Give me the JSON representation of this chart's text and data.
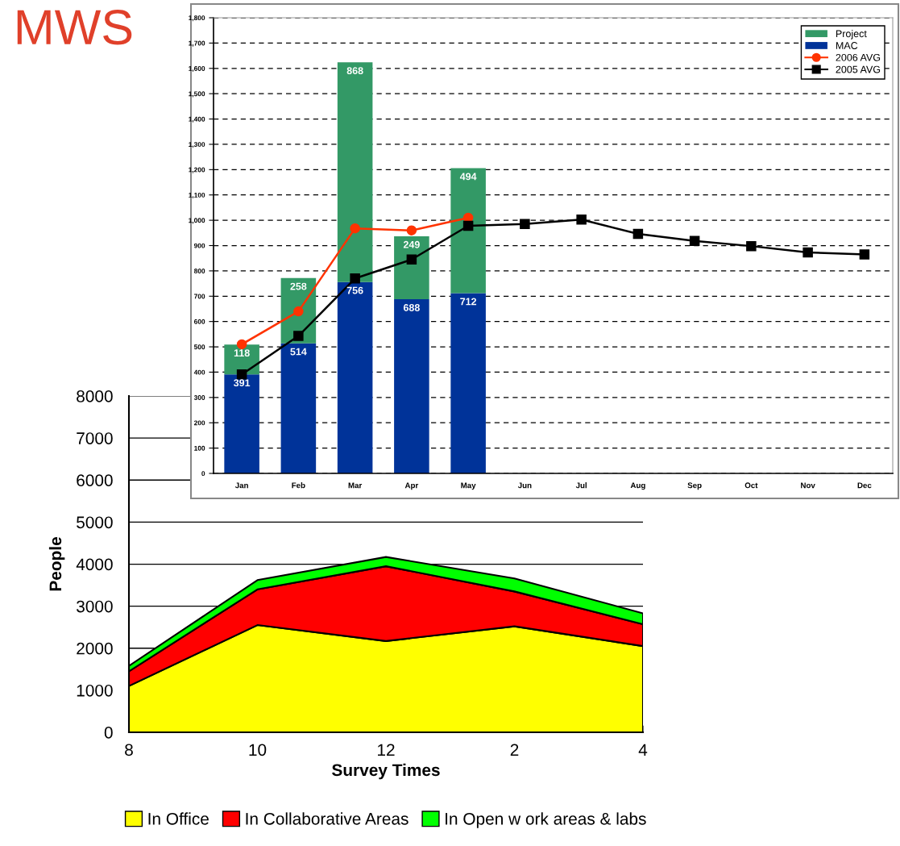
{
  "chart_data": [
    {
      "type": "area",
      "stacked": true,
      "xlabel": "Survey Times",
      "ylabel": "People",
      "categories": [
        "8",
        "10",
        "12",
        "2",
        "4"
      ],
      "ylim": [
        0,
        8000
      ],
      "yticks": [
        0,
        1000,
        2000,
        3000,
        4000,
        5000,
        6000,
        7000,
        8000
      ],
      "grid": "y",
      "legend": "bottom",
      "series": [
        {
          "name": "In Office",
          "color": "#ffff00",
          "values": [
            1100,
            2550,
            2170,
            2520,
            2050
          ]
        },
        {
          "name": "In Collaborative Areas",
          "color": "#ff0000",
          "values": [
            350,
            850,
            1780,
            830,
            520
          ]
        },
        {
          "name": "In Open w ork areas & labs",
          "color": "#00ff00",
          "values": [
            130,
            220,
            220,
            310,
            260
          ]
        }
      ]
    },
    {
      "type": "bar",
      "stacked": true,
      "title": "MWS",
      "categories": [
        "Jan",
        "Feb",
        "Mar",
        "Apr",
        "May",
        "Jun",
        "Jul",
        "Aug",
        "Sep",
        "Oct",
        "Nov",
        "Dec"
      ],
      "ylim": [
        0,
        1800
      ],
      "yticks": [
        {
          "value": 0,
          "label": "0"
        },
        {
          "value": 100,
          "label": "100"
        },
        {
          "value": 200,
          "label": "200"
        },
        {
          "value": 300,
          "label": "300"
        },
        {
          "value": 400,
          "label": "400"
        },
        {
          "value": 500,
          "label": "500"
        },
        {
          "value": 600,
          "label": "600"
        },
        {
          "value": 700,
          "label": "700"
        },
        {
          "value": 800,
          "label": "800"
        },
        {
          "value": 900,
          "label": "900"
        },
        {
          "value": 1000,
          "label": "1,000"
        },
        {
          "value": 1100,
          "label": "1,100"
        },
        {
          "value": 1200,
          "label": "1,200"
        },
        {
          "value": 1300,
          "label": "1,300"
        },
        {
          "value": 1400,
          "label": "1,400"
        },
        {
          "value": 1500,
          "label": "1,500"
        },
        {
          "value": 1600,
          "label": "1,600"
        },
        {
          "value": 1700,
          "label": "1,700"
        },
        {
          "value": 1800,
          "label": "1,800"
        }
      ],
      "grid": "y",
      "legend": "top right",
      "series": [
        {
          "name": "MAC",
          "type": "bar",
          "color": "#003399",
          "values": [
            391,
            514,
            756,
            688,
            712,
            null,
            null,
            null,
            null,
            null,
            null,
            null
          ],
          "value_labels": [
            "391",
            "514",
            "756",
            "688",
            "712",
            null,
            null,
            null,
            null,
            null,
            null,
            null
          ]
        },
        {
          "name": "Project",
          "type": "bar",
          "color": "#339966",
          "values": [
            118,
            258,
            868,
            249,
            494,
            null,
            null,
            null,
            null,
            null,
            null,
            null
          ],
          "value_labels": [
            "118",
            "258",
            "868",
            "249",
            "494",
            null,
            null,
            null,
            null,
            null,
            null,
            null
          ]
        },
        {
          "name": "2006 AVG",
          "type": "line",
          "marker": "circle",
          "color": "#ff3300",
          "values": [
            510,
            640,
            968,
            960,
            1010,
            null,
            null,
            null,
            null,
            null,
            null,
            null
          ]
        },
        {
          "name": "2005 AVG",
          "type": "line",
          "marker": "square",
          "color": "#000000",
          "values": [
            391,
            543,
            770,
            845,
            978,
            985,
            1003,
            946,
            918,
            898,
            873,
            865
          ]
        }
      ]
    }
  ]
}
